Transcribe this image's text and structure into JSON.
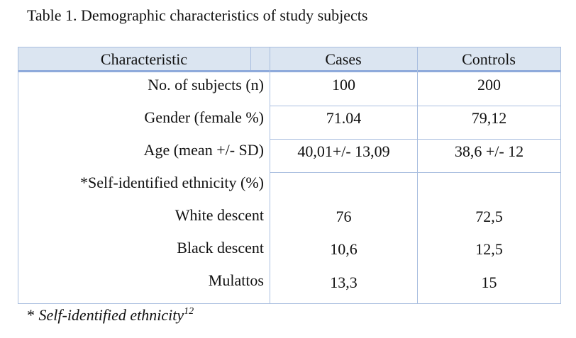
{
  "caption": "Table 1. Demographic characteristics of study subjects",
  "table": {
    "headers": [
      "Characteristic",
      "Cases",
      "Controls"
    ],
    "rows": [
      {
        "label": "No. of subjects (n)",
        "cases": "100",
        "controls": "200"
      },
      {
        "label": "Gender (female %)",
        "cases": "71.04",
        "controls": "79,12"
      },
      {
        "label": "Age (mean +/- SD)",
        "cases": "40,01+/- 13,09",
        "controls": "38,6 +/- 12"
      },
      {
        "label": "*Self-identified ethnicity (%)",
        "cases": "",
        "controls": ""
      },
      {
        "label": "White descent",
        "cases": "76",
        "controls": "72,5"
      },
      {
        "label": "Black descent",
        "cases": "10,6",
        "controls": "12,5"
      },
      {
        "label": "Mulattos",
        "cases": "13,3",
        "controls": "15"
      }
    ]
  },
  "footnote": {
    "prefix": "* ",
    "text": "Self-identified ethnicity",
    "superscript": "12"
  },
  "colors": {
    "header_fill": "#dbe5f1",
    "header_rule": "#8eaadb",
    "grid": "#a9bedf"
  }
}
